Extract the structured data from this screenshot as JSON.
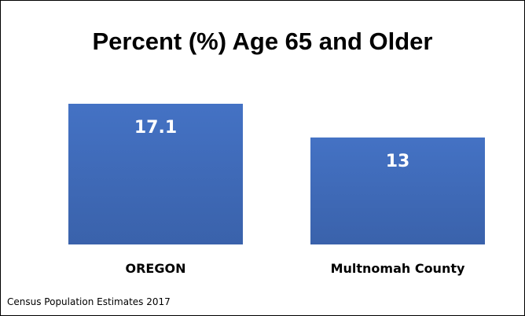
{
  "chart_data": {
    "type": "bar",
    "title": "Percent (%) Age 65 and Older",
    "categories": [
      "OREGON",
      "Multnomah County"
    ],
    "values": [
      17.1,
      13
    ],
    "value_labels": [
      "17.1",
      "13"
    ],
    "xlabel": "",
    "ylabel": "",
    "ylim": [
      0,
      17.1
    ],
    "grid": false,
    "legend": "none",
    "bar_color": "#4472c4"
  },
  "footnote": "Census Population Estimates 2017"
}
